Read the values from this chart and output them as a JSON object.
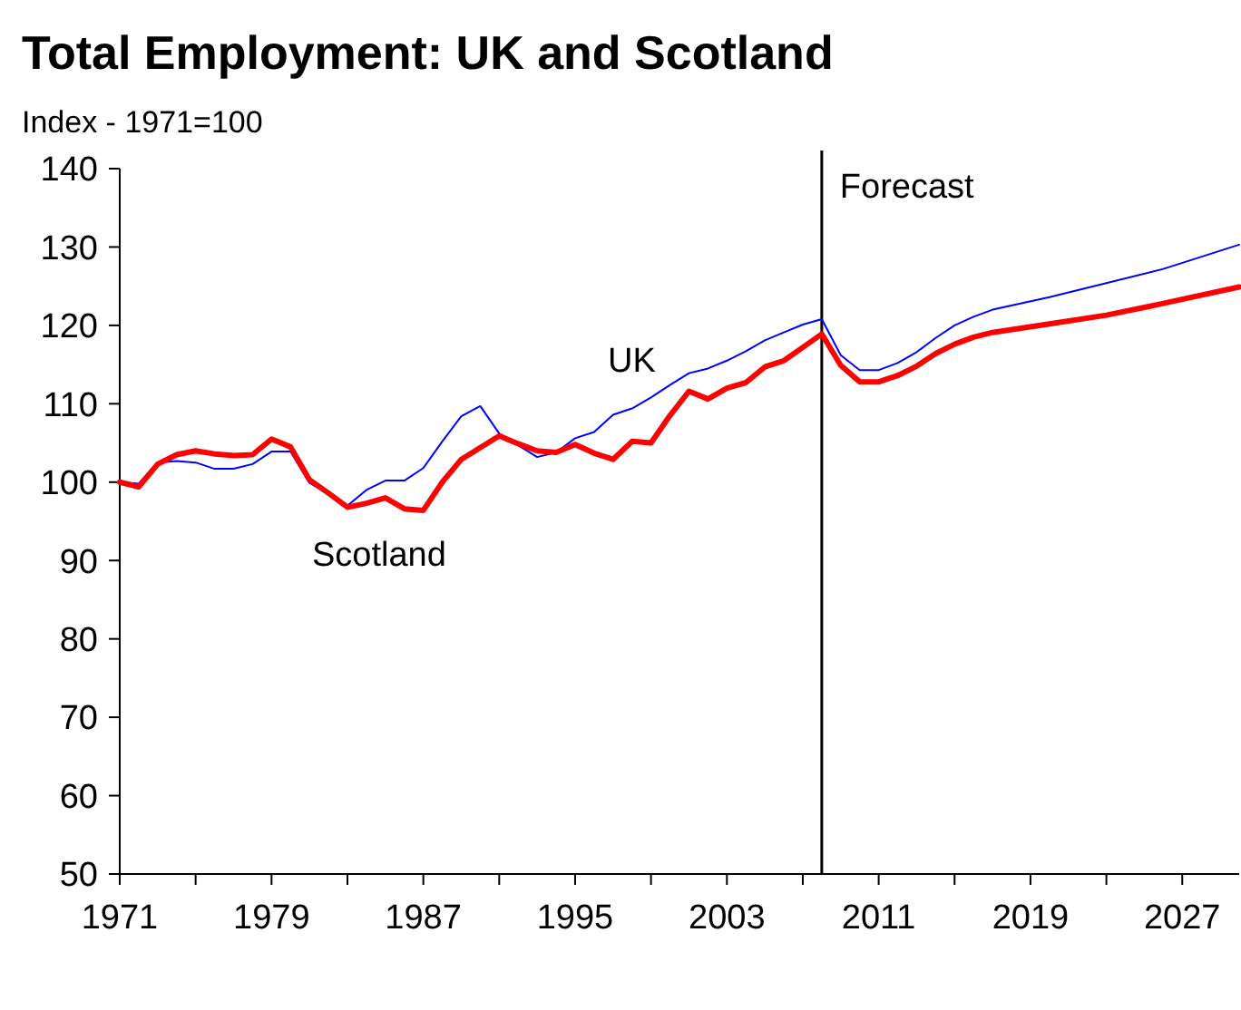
{
  "chart_data": {
    "type": "line",
    "title": "Total Employment: UK and Scotland",
    "ylabel": "Index - 1971=100",
    "x": [
      1971,
      1972,
      1973,
      1974,
      1975,
      1976,
      1977,
      1978,
      1979,
      1980,
      1981,
      1982,
      1983,
      1984,
      1985,
      1986,
      1987,
      1988,
      1989,
      1990,
      1991,
      1992,
      1993,
      1994,
      1995,
      1996,
      1997,
      1998,
      1999,
      2000,
      2001,
      2002,
      2003,
      2004,
      2005,
      2006,
      2007,
      2008,
      2009,
      2010,
      2011,
      2012,
      2013,
      2014,
      2015,
      2016,
      2017,
      2020,
      2023,
      2026,
      2030
    ],
    "series": [
      {
        "name": "UK",
        "color": "#0000ff",
        "values": [
          100,
          99.8,
          102.5,
          102.7,
          102.5,
          101.7,
          101.7,
          102.3,
          103.9,
          103.9,
          99.9,
          98.5,
          97,
          99,
          100.2,
          100.2,
          101.8,
          105.2,
          108.4,
          109.7,
          106.2,
          104.7,
          103.2,
          103.8,
          105.6,
          106.4,
          108.6,
          109.4,
          110.8,
          112.4,
          113.9,
          114.5,
          115.5,
          116.7,
          118.1,
          119.1,
          120.1,
          120.8,
          116.2,
          114.3,
          114.3,
          115.2,
          116.6,
          118.4,
          120,
          121.1,
          122,
          123.6,
          125.4,
          127.2,
          130.3
        ]
      },
      {
        "name": "Scotland",
        "color": "#ff0000",
        "values": [
          100,
          99.4,
          102.3,
          103.5,
          104,
          103.6,
          103.4,
          103.5,
          105.5,
          104.5,
          100.3,
          98.6,
          96.8,
          97.3,
          98,
          96.6,
          96.4,
          100,
          102.9,
          104.4,
          105.9,
          104.9,
          104,
          103.8,
          104.8,
          103.7,
          102.9,
          105.2,
          105,
          108.5,
          111.6,
          110.6,
          112,
          112.7,
          114.7,
          115.5,
          117.2,
          118.9,
          114.9,
          112.8,
          112.8,
          113.6,
          114.8,
          116.4,
          117.6,
          118.5,
          119.1,
          120.2,
          121.3,
          122.8,
          124.9
        ]
      }
    ],
    "xlim": [
      1971,
      2030
    ],
    "xticks": [
      1971,
      {
        "value": 1975,
        "label": null
      },
      1979,
      {
        "value": 1983,
        "label": null
      },
      1987,
      {
        "value": 1991,
        "label": null
      },
      1995,
      {
        "value": 1999,
        "label": null
      },
      2003,
      {
        "value": 2007,
        "label": null
      },
      2011,
      {
        "value": 2015,
        "label": null
      },
      2019,
      {
        "value": 2023,
        "label": null
      },
      2027
    ],
    "ylim": [
      50,
      140
    ],
    "yticks": [
      50,
      60,
      70,
      80,
      90,
      100,
      110,
      120,
      130,
      140
    ],
    "ref_lines": [
      {
        "axis": "x",
        "value": 2008,
        "label": "Forecast",
        "color": "#000000"
      }
    ],
    "grid": false,
    "marker": "none",
    "line_style": "solid"
  }
}
